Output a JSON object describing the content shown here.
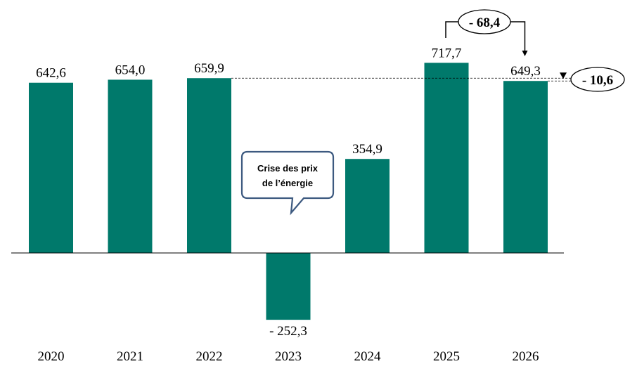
{
  "chart_data": {
    "type": "bar",
    "categories": [
      "2020",
      "2021",
      "2022",
      "2023",
      "2024",
      "2025",
      "2026"
    ],
    "values": [
      642.6,
      654.0,
      659.9,
      -252.3,
      354.9,
      717.7,
      649.3
    ],
    "value_labels": [
      "642,6",
      "654,0",
      "659,9",
      "- 252,3",
      "354,9",
      "717,7",
      "649,3"
    ],
    "ylim": [
      -280,
      780
    ],
    "grid": false,
    "bar_color": "#00796b",
    "title": "",
    "xlabel": "",
    "ylabel": "",
    "annotations": {
      "change_2025_2026": "- 68,4",
      "change_2022_2026": "- 10,6",
      "callout_line1": "Crise des prix",
      "callout_line2": "de l’énergie"
    }
  }
}
